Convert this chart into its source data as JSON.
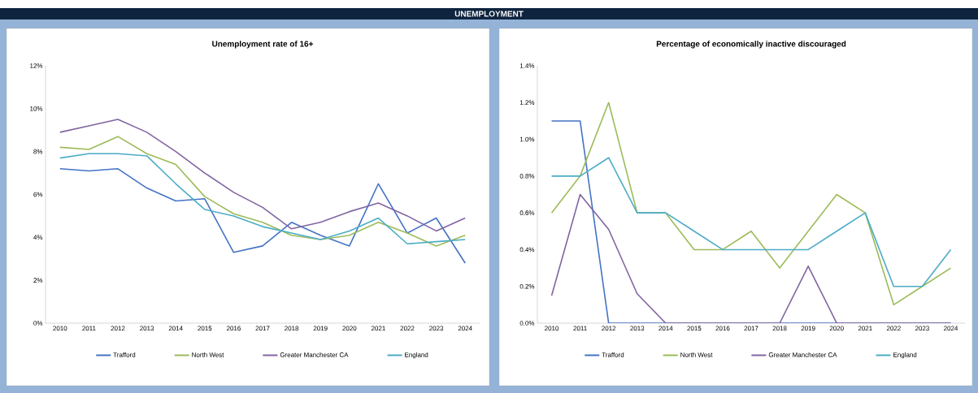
{
  "chart_data": [
    {
      "type": "other",
      "title": "UNEMPLOYMENT"
    },
    {
      "type": "line",
      "title": "Unemployment  rate of 16+",
      "categories": [
        "2010",
        "2011",
        "2012",
        "2013",
        "2014",
        "2015",
        "2016",
        "2017",
        "2018",
        "2019",
        "2020",
        "2021",
        "2022",
        "2023",
        "2024"
      ],
      "ylim": [
        0,
        12
      ],
      "yticks": [
        {
          "value": 0,
          "label": "0%"
        },
        {
          "value": 2,
          "label": "2%"
        },
        {
          "value": 4,
          "label": "4%"
        },
        {
          "value": 6,
          "label": "6%"
        },
        {
          "value": 8,
          "label": "8%"
        },
        {
          "value": 10,
          "label": "10%"
        },
        {
          "value": 12,
          "label": "12%"
        }
      ],
      "legend": "bottom",
      "series": [
        {
          "name": "Trafford",
          "color": "#4472c4",
          "values": [
            7.2,
            7.1,
            7.2,
            6.3,
            5.7,
            5.8,
            3.3,
            3.6,
            4.7,
            4.1,
            3.6,
            6.5,
            4.2,
            4.9,
            2.8
          ]
        },
        {
          "name": "North West",
          "color": "#9bbb59",
          "values": [
            8.2,
            8.1,
            8.7,
            7.9,
            7.4,
            5.9,
            5.1,
            4.7,
            4.1,
            3.9,
            4.1,
            4.7,
            4.2,
            3.6,
            4.1
          ]
        },
        {
          "name": "Greater Manchester CA",
          "color": "#8064a2",
          "values": [
            8.9,
            9.2,
            9.5,
            8.9,
            8.0,
            7.0,
            6.1,
            5.4,
            4.4,
            4.7,
            5.2,
            5.6,
            5.0,
            4.3,
            4.9
          ]
        },
        {
          "name": "England",
          "color": "#4bacc6",
          "values": [
            7.7,
            7.9,
            7.9,
            7.8,
            6.5,
            5.3,
            5.0,
            4.5,
            4.2,
            3.9,
            4.3,
            4.9,
            3.7,
            3.8,
            3.9
          ]
        }
      ]
    },
    {
      "type": "line",
      "title": "Percentage of economically inactive discouraged",
      "categories": [
        "2010",
        "2011",
        "2012",
        "2013",
        "2014",
        "2015",
        "2016",
        "2017",
        "2018",
        "2019",
        "2020",
        "2021",
        "2022",
        "2023",
        "2024"
      ],
      "ylim": [
        0,
        1.4
      ],
      "yticks": [
        {
          "value": 0,
          "label": "0.0%"
        },
        {
          "value": 0.2,
          "label": "0.2%"
        },
        {
          "value": 0.4,
          "label": "0.4%"
        },
        {
          "value": 0.6,
          "label": "0.6%"
        },
        {
          "value": 0.8,
          "label": "0.8%"
        },
        {
          "value": 1.0,
          "label": "1.0%"
        },
        {
          "value": 1.2,
          "label": "1.2%"
        },
        {
          "value": 1.4,
          "label": "1.4%"
        }
      ],
      "legend": "bottom",
      "series": [
        {
          "name": "Trafford",
          "color": "#4472c4",
          "values": [
            1.1,
            1.1,
            0,
            0,
            0,
            0,
            0,
            0,
            0,
            0,
            0,
            0,
            0,
            0,
            0
          ]
        },
        {
          "name": "North West",
          "color": "#9bbb59",
          "values": [
            0.6,
            0.8,
            1.2,
            0.6,
            0.6,
            0.4,
            0.4,
            0.5,
            0.3,
            0.5,
            0.7,
            0.6,
            0.1,
            0.2,
            0.3
          ]
        },
        {
          "name": "Greater Manchester CA",
          "color": "#8064a2",
          "values": [
            0.15,
            0.7,
            0.51,
            0.16,
            0,
            0,
            0,
            0,
            0,
            0.31,
            0,
            0,
            0,
            0,
            0
          ]
        },
        {
          "name": "England",
          "color": "#4bacc6",
          "values": [
            0.8,
            0.8,
            0.9,
            0.6,
            0.6,
            0.5,
            0.4,
            0.4,
            0.4,
            0.4,
            0.5,
            0.6,
            0.2,
            0.2,
            0.4
          ]
        }
      ]
    }
  ]
}
